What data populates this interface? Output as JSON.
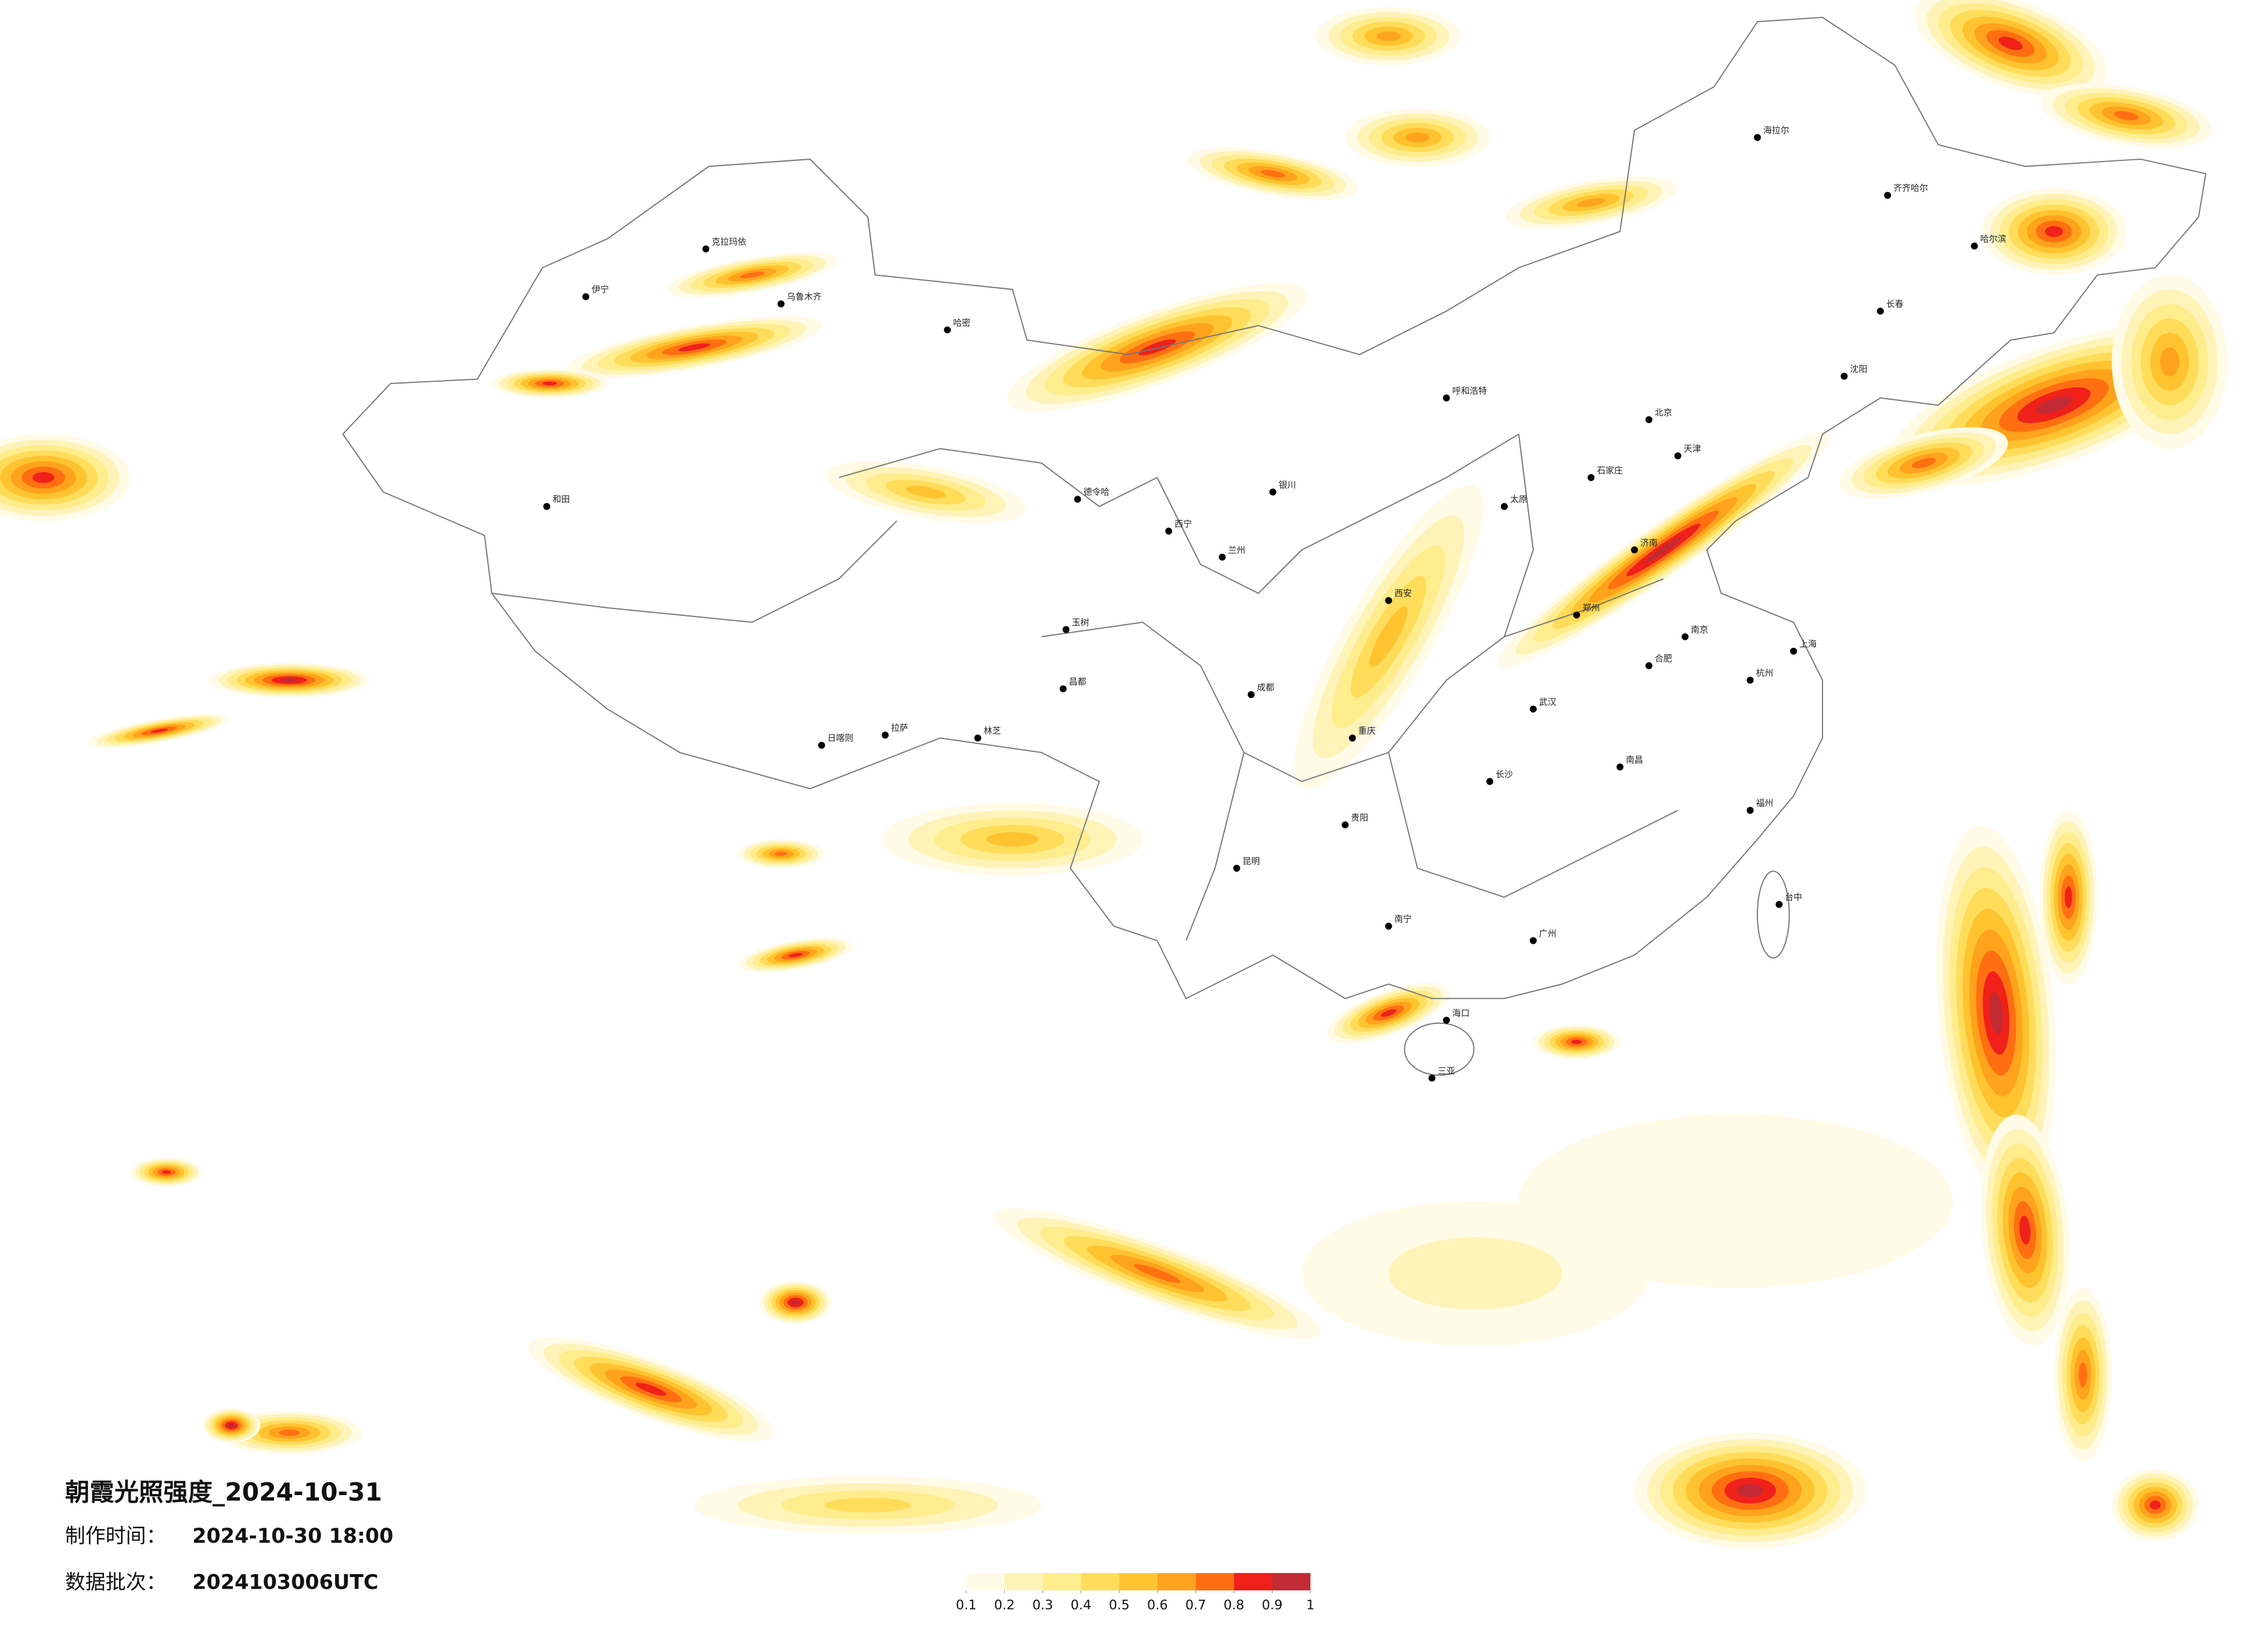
{
  "title": "朝霞光照强度_2024-10-31",
  "made_time_label": "制作时间：",
  "made_time": "2024-10-30 18:00",
  "batch_label": "数据批次：",
  "batch": "2024103006UTC",
  "legend": {
    "ticks": [
      0.1,
      0.2,
      0.3,
      0.4,
      0.5,
      0.6,
      0.7,
      0.8,
      0.9,
      1
    ],
    "colors": [
      "#fffbe6",
      "#fff3b8",
      "#ffec8c",
      "#ffdc5a",
      "#ffc330",
      "#ffa21c",
      "#ff6f12",
      "#f0201a",
      "#c22a34"
    ]
  },
  "cities": [
    "伊宁",
    "克拉玛依",
    "乌鲁木齐",
    "哈密",
    "和田",
    "日喀则",
    "拉萨",
    "林芝",
    "昌都",
    "玉树",
    "德令哈",
    "西宁",
    "兰州",
    "银川",
    "呼和浩特",
    "北京",
    "天津",
    "石家庄",
    "太原",
    "郑州",
    "西安",
    "成都",
    "重庆",
    "贵阳",
    "昆明",
    "南宁",
    "广州",
    "福州",
    "杭州",
    "南京",
    "上海",
    "武汉",
    "长沙",
    "南昌",
    "合肥",
    "济南",
    "沈阳",
    "长春",
    "哈尔滨",
    "齐齐哈尔",
    "海拉尔",
    "台中",
    "海口",
    "三亚"
  ]
}
